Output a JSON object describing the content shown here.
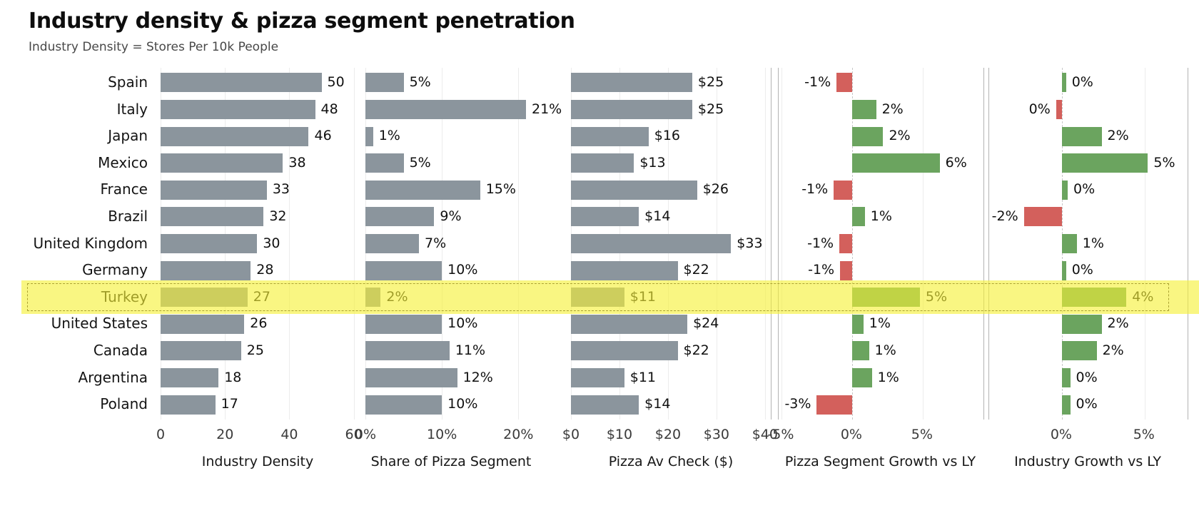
{
  "title": "Industry density & pizza segment penetration",
  "subtitle": "Industry Density = Stores Per 10k People",
  "highlight": {
    "country": "Turkey",
    "row_index": 8
  },
  "colors": {
    "bar_grey": "#8b959d",
    "bar_green": "#6ba45f",
    "bar_red": "#d3605c",
    "highlight_fill": "rgba(246,241,54,0.62)",
    "highlight_border": "#c8bb3e",
    "gridline": "#ececec",
    "panel_spine": "#b3b3b3"
  },
  "chart_data": {
    "type": "bar",
    "orientation": "horizontal",
    "grid": true,
    "categories": [
      "Spain",
      "Italy",
      "Japan",
      "Mexico",
      "France",
      "Brazil",
      "United Kingdom",
      "Germany",
      "Turkey",
      "United States",
      "Canada",
      "Argentina",
      "Poland"
    ],
    "panels": [
      {
        "name": "industry-density",
        "title": "Industry Density",
        "color_mode": "grey",
        "domain": [
          0,
          60.3
        ],
        "ticks": [
          {
            "v": 0,
            "label": "0"
          },
          {
            "v": 20,
            "label": "20"
          },
          {
            "v": 40,
            "label": "40"
          },
          {
            "v": 60,
            "label": "60"
          }
        ],
        "values": [
          50,
          48,
          46,
          38,
          33,
          32,
          30,
          28,
          27,
          26,
          25,
          18,
          17
        ],
        "labels": [
          "50",
          "48",
          "46",
          "38",
          "33",
          "32",
          "30",
          "28",
          "27",
          "26",
          "25",
          "18",
          "17"
        ]
      },
      {
        "name": "share-of-pizza-segment",
        "title": "Share of Pizza Segment",
        "color_mode": "grey",
        "domain": [
          0,
          22.4
        ],
        "ticks": [
          {
            "v": 0,
            "label": "0%"
          },
          {
            "v": 10,
            "label": "10%"
          },
          {
            "v": 20,
            "label": "20%"
          }
        ],
        "values": [
          5,
          21,
          1,
          5,
          15,
          9,
          7,
          10,
          2,
          10,
          11,
          12,
          10
        ],
        "labels": [
          "5%",
          "21%",
          "1%",
          "5%",
          "15%",
          "9%",
          "7%",
          "10%",
          "2%",
          "10%",
          "11%",
          "12%",
          "10%"
        ]
      },
      {
        "name": "pizza-av-check",
        "title": "Pizza Av Check ($)",
        "color_mode": "grey",
        "domain": [
          0,
          41.2
        ],
        "ticks": [
          {
            "v": 0,
            "label": "$0"
          },
          {
            "v": 10,
            "label": "$10"
          },
          {
            "v": 20,
            "label": "$20"
          },
          {
            "v": 30,
            "label": "$30"
          },
          {
            "v": 40,
            "label": "$40"
          }
        ],
        "values": [
          25,
          25,
          16,
          13,
          26,
          14,
          33,
          22,
          11,
          24,
          22,
          11,
          14
        ],
        "labels": [
          "$25",
          "$25",
          "$16",
          "$13",
          "$26",
          "$14",
          "$33",
          "$22",
          "$11",
          "$24",
          "$22",
          "$11",
          "$14"
        ]
      },
      {
        "name": "pizza-segment-growth-vs-ly",
        "title": "Pizza Segment Growth vs LY",
        "color_mode": "diverging",
        "domain": [
          -5.2,
          9.3
        ],
        "ticks": [
          {
            "v": -5,
            "label": "-5%"
          },
          {
            "v": 0,
            "label": "0%"
          },
          {
            "v": 5,
            "label": "5%"
          }
        ],
        "values": [
          -1.1,
          1.7,
          2.2,
          6.2,
          -1.3,
          0.9,
          -0.9,
          -0.85,
          4.8,
          0.8,
          1.2,
          1.4,
          -2.5
        ],
        "labels": [
          "-1%",
          "2%",
          "2%",
          "6%",
          "-1%",
          "1%",
          "-1%",
          "-1%",
          "5%",
          "1%",
          "1%",
          "1%",
          "-3%"
        ]
      },
      {
        "name": "industry-growth-vs-ly",
        "title": "Industry Growth vs LY",
        "color_mode": "diverging",
        "domain": [
          -4.4,
          7.6
        ],
        "ticks": [
          {
            "v": 0,
            "label": "0%"
          },
          {
            "v": 5,
            "label": "5%"
          }
        ],
        "values": [
          0.25,
          -0.35,
          2.4,
          5.2,
          0.35,
          -2.3,
          0.9,
          0.25,
          3.9,
          2.4,
          2.1,
          0.5,
          0.5
        ],
        "labels": [
          "0%",
          "0%",
          "2%",
          "5%",
          "0%",
          "-2%",
          "1%",
          "0%",
          "4%",
          "2%",
          "2%",
          "0%",
          "0%"
        ]
      }
    ]
  }
}
